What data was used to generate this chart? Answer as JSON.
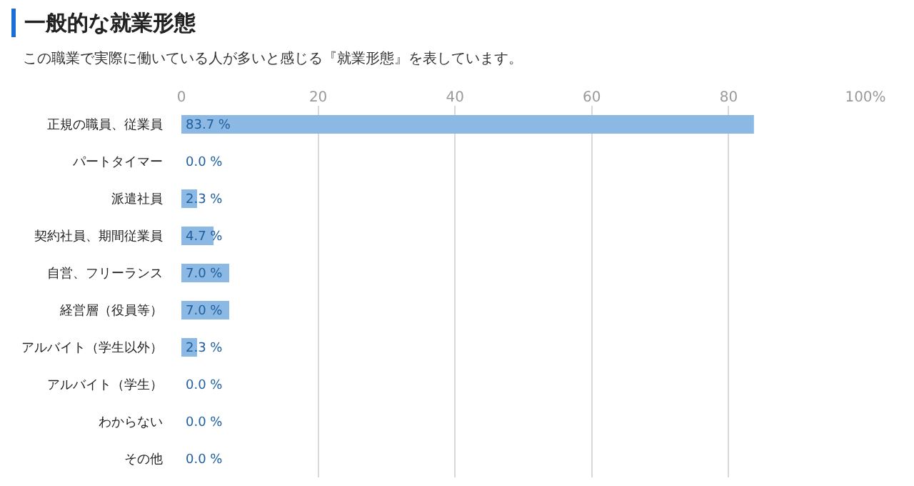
{
  "chart_data": {
    "type": "bar",
    "orientation": "horizontal",
    "title": "一般的な就業形態",
    "subtitle": "この職業で実際に働いている人が多いと感じる『就業形態』を表しています。",
    "categories": [
      "正規の職員、従業員",
      "パートタイマー",
      "派遣社員",
      "契約社員、期間従業員",
      "自営、フリーランス",
      "経営層（役員等）",
      "アルバイト（学生以外）",
      "アルバイト（学生）",
      "わからない",
      "その他"
    ],
    "values": [
      83.7,
      0.0,
      2.3,
      4.7,
      7.0,
      7.0,
      2.3,
      0.0,
      0.0,
      0.0
    ],
    "value_labels": [
      "83.7 %",
      "0.0 %",
      "2.3 %",
      "4.7 %",
      "7.0 %",
      "7.0 %",
      "2.3 %",
      "0.0 %",
      "0.0 %",
      "0.0 %"
    ],
    "color": "#8cb9e3",
    "xlim": [
      0,
      100
    ],
    "xticks": [
      0,
      20,
      40,
      60,
      80,
      {
        "value": 100,
        "label": "100%"
      }
    ],
    "grid": "x",
    "legend": false
  }
}
